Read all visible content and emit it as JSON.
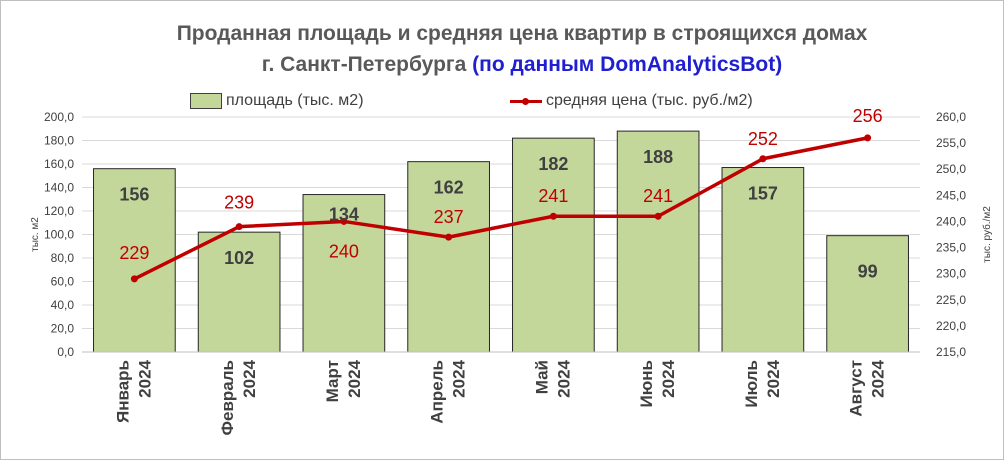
{
  "chart_data": {
    "type": "bar",
    "title_line1": "Проданная площадь и средняя цена квартир в строящихся домах",
    "title_line2_main": "г. Санкт-Петербурга ",
    "title_line2_source": "(по данным DomAnalyticsBot)",
    "categories": [
      [
        "Январь",
        "2024"
      ],
      [
        "Февраль",
        "2024"
      ],
      [
        "Март",
        "2024"
      ],
      [
        "Апрель",
        "2024"
      ],
      [
        "Май",
        "2024"
      ],
      [
        "Июнь",
        "2024"
      ],
      [
        "Июль",
        "2024"
      ],
      [
        "Август",
        "2024"
      ]
    ],
    "series": [
      {
        "name": "площадь (тыс. м2)",
        "type": "bar",
        "axis": "left",
        "values": [
          156,
          102,
          134,
          162,
          182,
          188,
          157,
          99
        ],
        "labels": [
          "156",
          "102",
          "134",
          "162",
          "182",
          "188",
          "157",
          "99"
        ],
        "color": "#c4d79b"
      },
      {
        "name": "средняя цена (тыс. руб./м2)",
        "type": "line",
        "axis": "right",
        "values": [
          229,
          239,
          240,
          237,
          241,
          241,
          252,
          256
        ],
        "labels": [
          "229",
          "239",
          "240",
          "237",
          "241",
          "241",
          "252",
          "256"
        ],
        "color": "#c00000"
      }
    ],
    "y_left": {
      "label": "тыс. м2",
      "range": [
        0,
        200
      ],
      "ticks": [
        "0,0",
        "20,0",
        "40,0",
        "60,0",
        "80,0",
        "100,0",
        "120,0",
        "140,0",
        "160,0",
        "180,0",
        "200,0"
      ]
    },
    "y_right": {
      "label": "тыс. руб./м2",
      "range": [
        215,
        260
      ],
      "ticks": [
        "215,0",
        "220,0",
        "225,0",
        "230,0",
        "235,0",
        "240,0",
        "245,0",
        "250,0",
        "255,0",
        "260,0"
      ]
    },
    "legend_position": "top",
    "grid": true
  }
}
